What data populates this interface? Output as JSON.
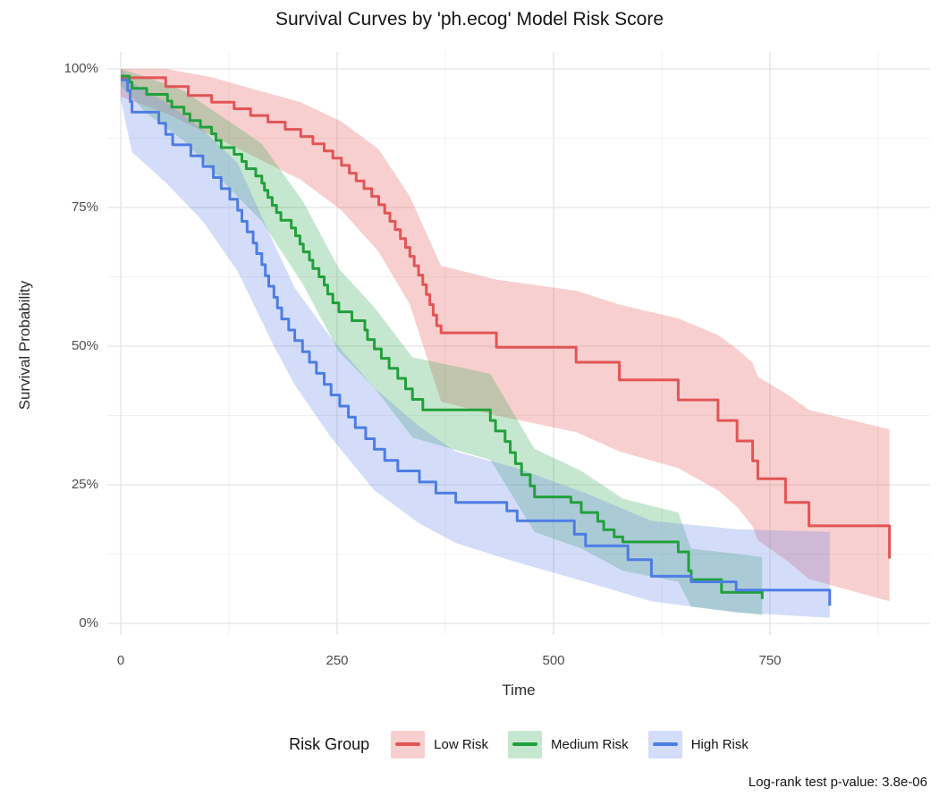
{
  "title": "Survival Curves by 'ph.ecog' Model Risk Score",
  "caption": "Log-rank test p-value: 3.8e-06",
  "axes": {
    "x": {
      "label": "Time",
      "ticks": [
        {
          "value": 0,
          "label": "0"
        },
        {
          "value": 250,
          "label": "250"
        },
        {
          "value": 500,
          "label": "500"
        },
        {
          "value": 750,
          "label": "750"
        }
      ]
    },
    "y": {
      "label": "Survival Probability",
      "ticks": [
        {
          "value": 0,
          "label": "0%"
        },
        {
          "value": 25,
          "label": "25%"
        },
        {
          "value": 50,
          "label": "50%"
        },
        {
          "value": 75,
          "label": "75%"
        },
        {
          "value": 100,
          "label": "100%"
        }
      ]
    }
  },
  "legend": {
    "title": "Risk Group",
    "items": [
      {
        "label": "Low Risk",
        "line_color": "#E15556",
        "fill_color": "rgba(231,97,97,0.30)"
      },
      {
        "label": "Medium Risk",
        "line_color": "#22A03C",
        "fill_color": "rgba(50,168,82,0.28)"
      },
      {
        "label": "High Risk",
        "line_color": "#4D7DE3",
        "fill_color": "rgba(97,134,232,0.28)"
      }
    ]
  },
  "chart_data": {
    "type": "line",
    "subtype": "kaplan-meier-step-curves-with-confidence-bands",
    "title": "Survival Curves by 'ph.ecog' Model Risk Score",
    "xlabel": "Time",
    "ylabel": "Survival Probability",
    "xlim": [
      -16,
      935
    ],
    "ylim": [
      -2,
      105
    ],
    "x_major_ticks": [
      0,
      250,
      500,
      750
    ],
    "x_minor_ticks": [
      125,
      375,
      625,
      875
    ],
    "y_major_ticks_percent": [
      0,
      25,
      50,
      75,
      100
    ],
    "y_minor_ticks_percent": [
      12.5,
      37.5,
      62.5,
      87.5
    ],
    "grid": "on",
    "legend_position": "bottom",
    "annotation": "Log-rank test p-value: 3.8e-06",
    "series": [
      {
        "name": "Low Risk",
        "color": "#E15556",
        "fill": "rgba(231,97,97,0.30)",
        "steps": [
          [
            0,
            98.4
          ],
          [
            52,
            96.8
          ],
          [
            78,
            95.2
          ],
          [
            105,
            94.0
          ],
          [
            131,
            92.8
          ],
          [
            150,
            91.6
          ],
          [
            170,
            90.4
          ],
          [
            190,
            89.1
          ],
          [
            208,
            87.8
          ],
          [
            222,
            86.5
          ],
          [
            235,
            85.2
          ],
          [
            245,
            83.9
          ],
          [
            255,
            82.6
          ],
          [
            264,
            81.2
          ],
          [
            272,
            79.8
          ],
          [
            281,
            78.4
          ],
          [
            290,
            77.0
          ],
          [
            298,
            75.5
          ],
          [
            305,
            74.0
          ],
          [
            311,
            72.5
          ],
          [
            317,
            71.0
          ],
          [
            323,
            69.4
          ],
          [
            329,
            67.8
          ],
          [
            334,
            66.2
          ],
          [
            339,
            64.5
          ],
          [
            344,
            62.8
          ],
          [
            349,
            61.1
          ],
          [
            353,
            59.3
          ],
          [
            357,
            57.5
          ],
          [
            361,
            55.6
          ],
          [
            365,
            53.7
          ],
          [
            370,
            52.4
          ],
          [
            434,
            49.8
          ],
          [
            526,
            47.1
          ],
          [
            576,
            43.9
          ],
          [
            644,
            40.3
          ],
          [
            690,
            36.6
          ],
          [
            712,
            32.9
          ],
          [
            730,
            29.3
          ],
          [
            736,
            26.1
          ],
          [
            768,
            21.8
          ],
          [
            795,
            17.6
          ],
          [
            888,
            11.7
          ]
        ],
        "ci": [
          [
            0,
            95,
            100
          ],
          [
            52,
            92,
            100
          ],
          [
            105,
            88,
            98.5
          ],
          [
            150,
            84.5,
            96.5
          ],
          [
            208,
            80,
            94
          ],
          [
            255,
            74.5,
            90.5
          ],
          [
            298,
            67,
            85.5
          ],
          [
            334,
            57.5,
            77
          ],
          [
            370,
            40,
            64.5
          ],
          [
            434,
            37.5,
            62
          ],
          [
            526,
            34.5,
            60
          ],
          [
            576,
            31,
            57.5
          ],
          [
            644,
            28,
            55
          ],
          [
            690,
            24,
            52
          ],
          [
            712,
            21,
            49.5
          ],
          [
            730,
            17.5,
            47
          ],
          [
            736,
            15,
            44.5
          ],
          [
            768,
            11.5,
            41.5
          ],
          [
            795,
            8,
            38.5
          ],
          [
            888,
            4,
            35
          ]
        ]
      },
      {
        "name": "Medium Risk",
        "color": "#22A03C",
        "fill": "rgba(50,168,82,0.28)",
        "steps": [
          [
            0,
            98.7
          ],
          [
            10,
            97.6
          ],
          [
            13,
            96.5
          ],
          [
            30,
            95.4
          ],
          [
            54,
            94.2
          ],
          [
            59,
            93.1
          ],
          [
            73,
            91.9
          ],
          [
            80,
            90.7
          ],
          [
            92,
            89.5
          ],
          [
            105,
            88.3
          ],
          [
            110,
            87.1
          ],
          [
            116,
            85.8
          ],
          [
            131,
            84.6
          ],
          [
            140,
            83.3
          ],
          [
            145,
            82.0
          ],
          [
            156,
            80.7
          ],
          [
            163,
            79.4
          ],
          [
            166,
            78.1
          ],
          [
            170,
            76.8
          ],
          [
            175,
            75.4
          ],
          [
            180,
            74.1
          ],
          [
            185,
            72.7
          ],
          [
            197,
            71.3
          ],
          [
            202,
            69.9
          ],
          [
            207,
            68.4
          ],
          [
            211,
            67.0
          ],
          [
            218,
            65.5
          ],
          [
            222,
            64.0
          ],
          [
            229,
            62.5
          ],
          [
            235,
            61.0
          ],
          [
            239,
            59.4
          ],
          [
            245,
            57.8
          ],
          [
            252,
            56.2
          ],
          [
            267,
            54.6
          ],
          [
            282,
            52.9
          ],
          [
            285,
            51.2
          ],
          [
            293,
            49.5
          ],
          [
            301,
            47.8
          ],
          [
            310,
            46.0
          ],
          [
            320,
            44.2
          ],
          [
            329,
            42.3
          ],
          [
            337,
            40.4
          ],
          [
            349,
            38.5
          ],
          [
            427,
            36.6
          ],
          [
            433,
            34.7
          ],
          [
            444,
            32.8
          ],
          [
            450,
            30.8
          ],
          [
            456,
            28.8
          ],
          [
            463,
            26.8
          ],
          [
            473,
            24.8
          ],
          [
            478,
            22.8
          ],
          [
            520,
            21.8
          ],
          [
            532,
            20.0
          ],
          [
            551,
            18.4
          ],
          [
            558,
            16.9
          ],
          [
            570,
            15.6
          ],
          [
            580,
            14.7
          ],
          [
            644,
            12.9
          ],
          [
            656,
            9.5
          ],
          [
            659,
            7.9
          ],
          [
            694,
            5.6
          ],
          [
            741,
            4.4
          ]
        ],
        "ci": [
          [
            0,
            97,
            100
          ],
          [
            30,
            92,
            98.5
          ],
          [
            73,
            87,
            96
          ],
          [
            116,
            80,
            91.5
          ],
          [
            163,
            72.5,
            86.5
          ],
          [
            211,
            61,
            76
          ],
          [
            252,
            49,
            64
          ],
          [
            293,
            42.5,
            57
          ],
          [
            337,
            33.5,
            48
          ],
          [
            427,
            29.5,
            45
          ],
          [
            478,
            16.5,
            31.5
          ],
          [
            532,
            13.5,
            27.5
          ],
          [
            580,
            9.5,
            22.5
          ],
          [
            644,
            7.5,
            20
          ],
          [
            659,
            3,
            13.5
          ],
          [
            741,
            1.5,
            12
          ]
        ]
      },
      {
        "name": "High Risk",
        "color": "#4D7DE3",
        "fill": "rgba(97,134,232,0.28)",
        "steps": [
          [
            0,
            98.0
          ],
          [
            8,
            96.1
          ],
          [
            11,
            94.1
          ],
          [
            13,
            92.2
          ],
          [
            44,
            90.2
          ],
          [
            52,
            88.2
          ],
          [
            60,
            86.3
          ],
          [
            81,
            84.3
          ],
          [
            95,
            82.4
          ],
          [
            107,
            80.4
          ],
          [
            116,
            78.4
          ],
          [
            126,
            76.5
          ],
          [
            135,
            74.5
          ],
          [
            140,
            72.5
          ],
          [
            146,
            70.6
          ],
          [
            153,
            68.6
          ],
          [
            157,
            66.7
          ],
          [
            163,
            64.7
          ],
          [
            167,
            62.7
          ],
          [
            171,
            60.8
          ],
          [
            177,
            58.8
          ],
          [
            181,
            56.9
          ],
          [
            186,
            54.9
          ],
          [
            194,
            52.9
          ],
          [
            201,
            51.0
          ],
          [
            210,
            49.0
          ],
          [
            218,
            47.1
          ],
          [
            226,
            45.1
          ],
          [
            235,
            43.1
          ],
          [
            243,
            41.2
          ],
          [
            253,
            39.2
          ],
          [
            263,
            37.2
          ],
          [
            271,
            35.3
          ],
          [
            283,
            33.3
          ],
          [
            293,
            31.4
          ],
          [
            305,
            29.4
          ],
          [
            320,
            27.5
          ],
          [
            345,
            25.5
          ],
          [
            364,
            23.5
          ],
          [
            387,
            21.8
          ],
          [
            446,
            20.3
          ],
          [
            458,
            18.5
          ],
          [
            524,
            16.1
          ],
          [
            537,
            14.0
          ],
          [
            586,
            11.5
          ],
          [
            613,
            8.5
          ],
          [
            659,
            7.5
          ],
          [
            711,
            6.0
          ],
          [
            819,
            3.2
          ]
        ],
        "ci": [
          [
            0,
            94.5,
            100
          ],
          [
            13,
            85,
            97.5
          ],
          [
            52,
            79.5,
            94
          ],
          [
            95,
            72.5,
            89
          ],
          [
            135,
            63.5,
            83
          ],
          [
            177,
            50,
            68.5
          ],
          [
            201,
            43,
            60.5
          ],
          [
            243,
            33.5,
            51.5
          ],
          [
            293,
            24,
            42.5
          ],
          [
            345,
            18,
            35.5
          ],
          [
            387,
            14.5,
            31
          ],
          [
            458,
            11,
            28
          ],
          [
            537,
            7.5,
            23.5
          ],
          [
            613,
            4,
            18.5
          ],
          [
            711,
            2,
            17
          ],
          [
            819,
            1,
            16.5
          ]
        ]
      }
    ]
  }
}
